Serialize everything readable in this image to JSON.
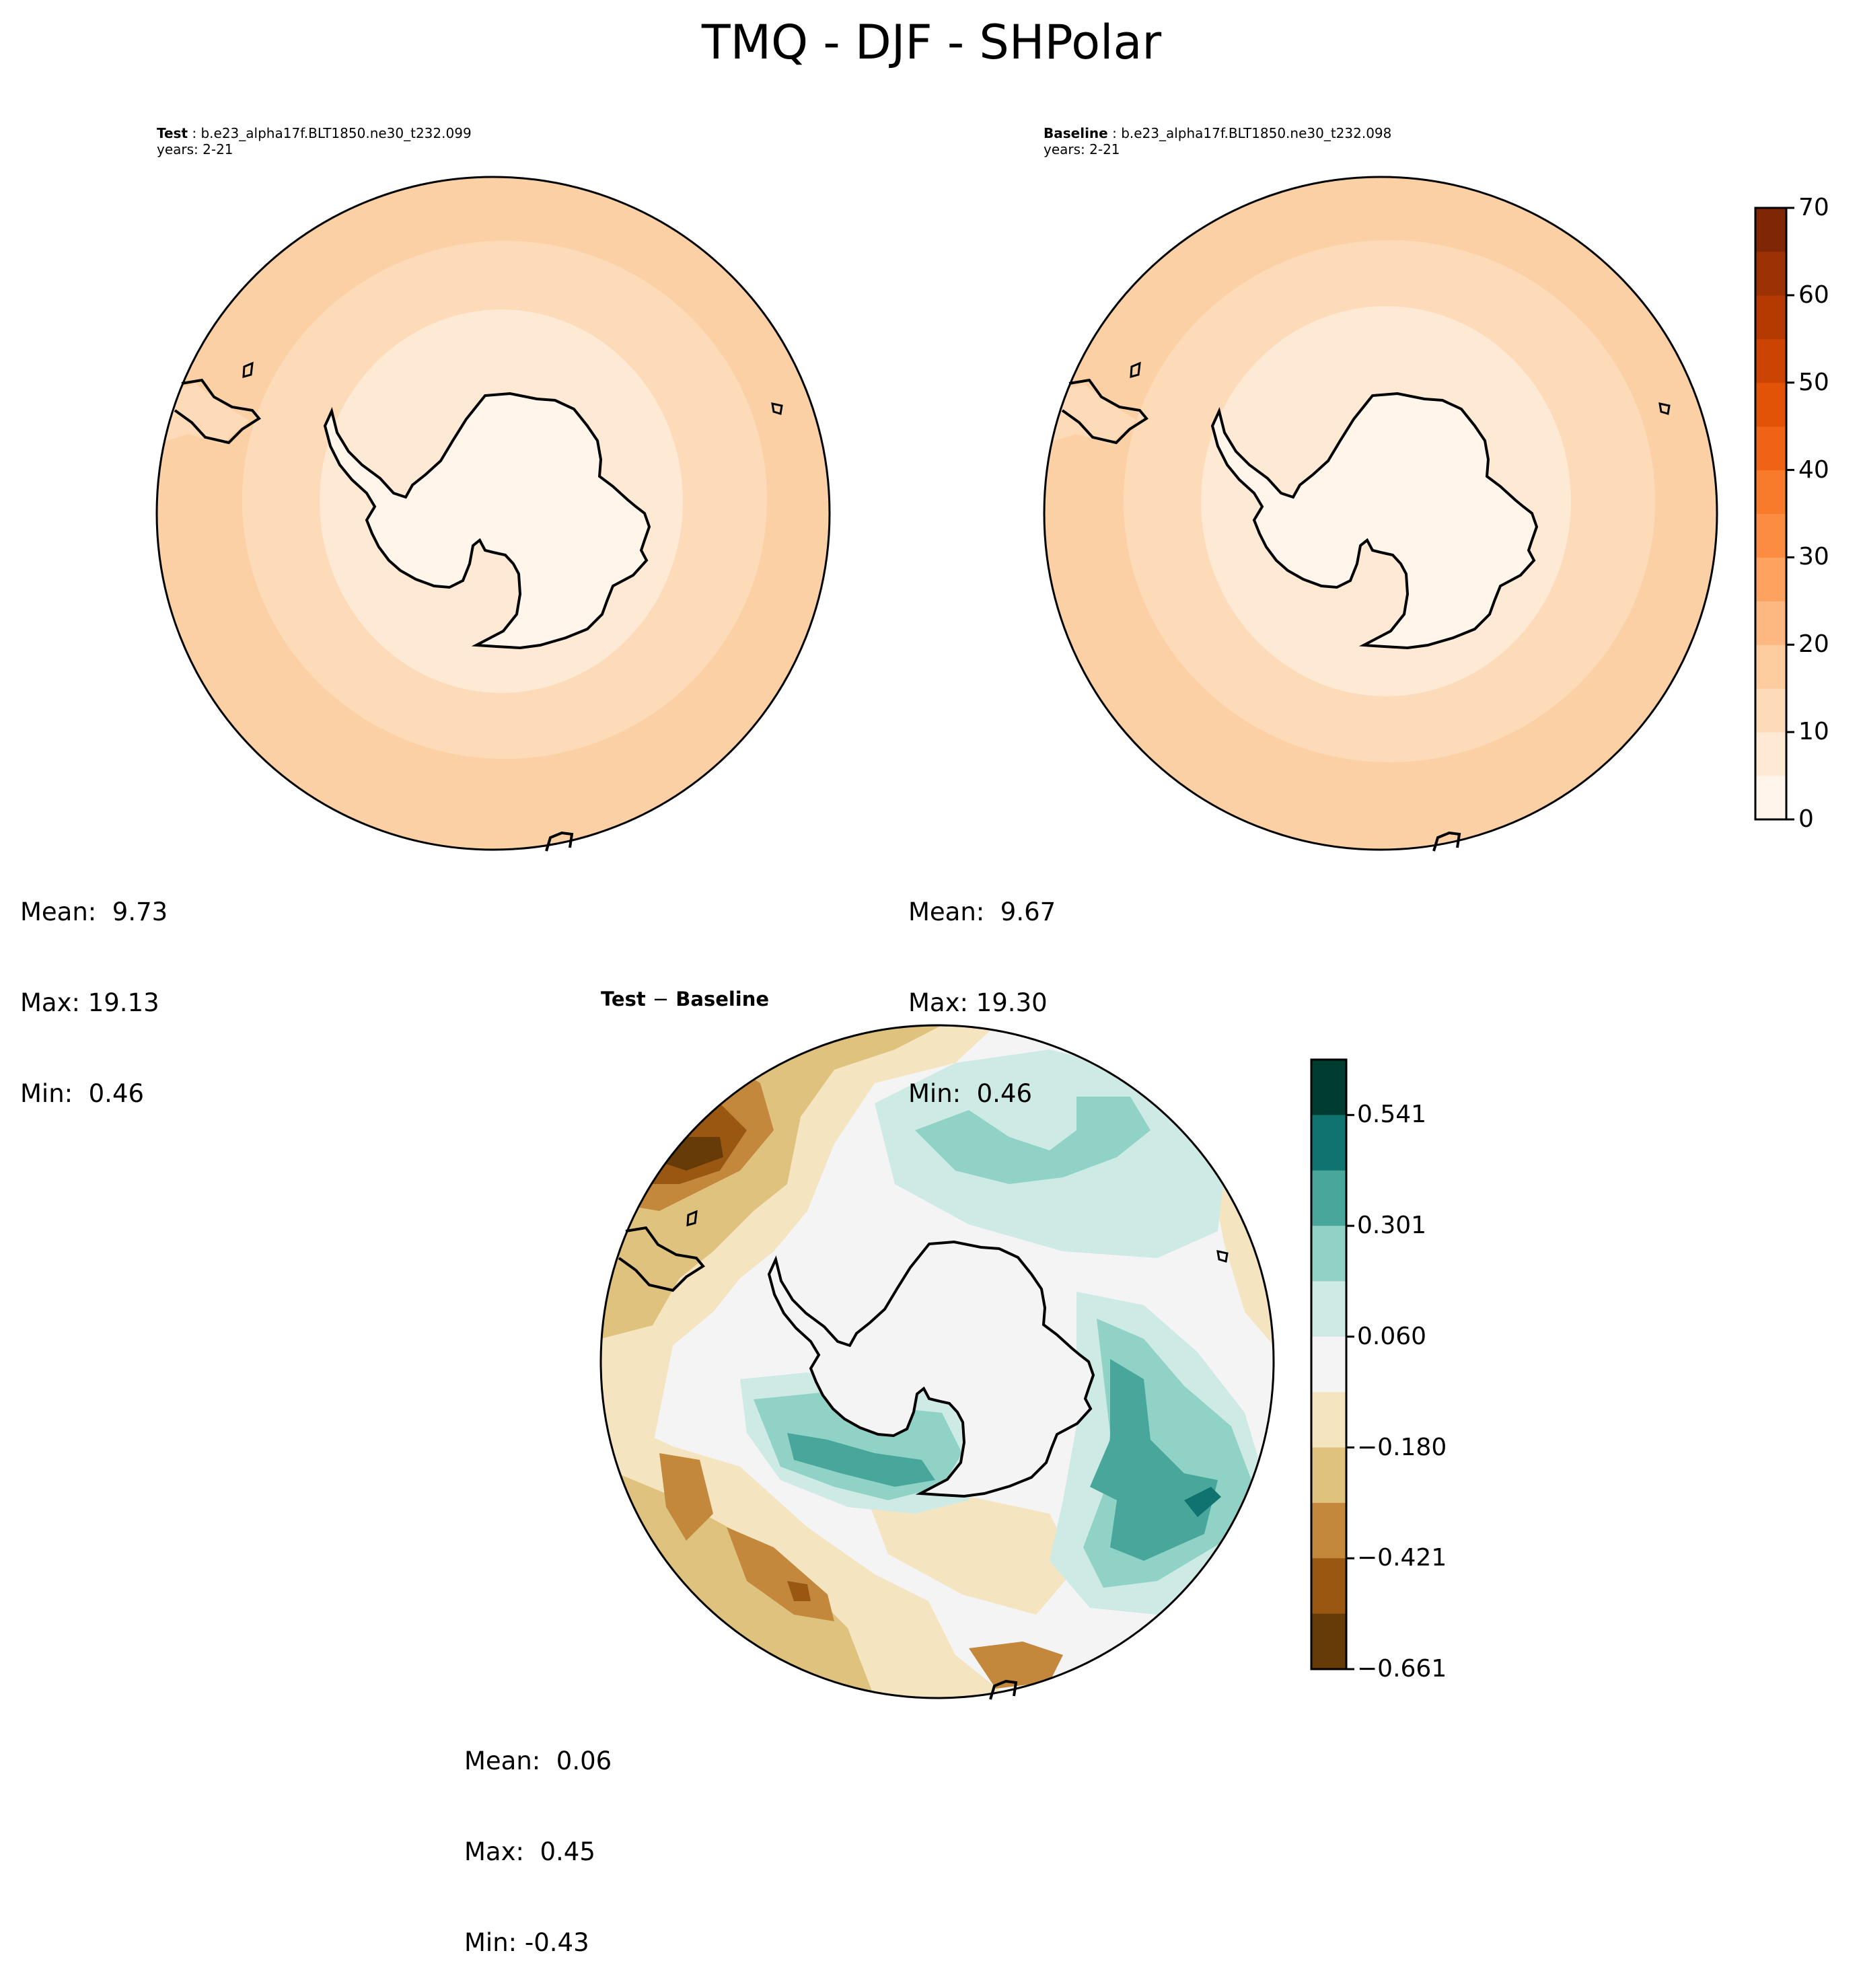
{
  "figure": {
    "title": "TMQ - DJF - SHPolar"
  },
  "panels": {
    "test": {
      "label": "Test",
      "case": "b.e23_alpha17f.BLT1850.ne30_t232.099",
      "years": "years: 2-21",
      "stats": {
        "mean": "Mean:  9.73",
        "max": "Max: 19.13",
        "min": "Min:  0.46"
      }
    },
    "baseline": {
      "label": "Baseline",
      "case": "b.e23_alpha17f.BLT1850.ne30_t232.098",
      "years": "years: 2-21",
      "stats": {
        "mean": "Mean:  9.67",
        "max": "Max: 19.30",
        "min": "Min:  0.46"
      }
    },
    "diff": {
      "title_a": "Test",
      "title_sep": "−",
      "title_b": "Baseline",
      "stats": {
        "mean": "Mean:  0.06",
        "max": "Max:  0.45",
        "min": "Min: -0.43"
      }
    }
  },
  "colorbars": {
    "main": {
      "ticks": [
        "0",
        "10",
        "20",
        "30",
        "40",
        "50",
        "60",
        "70"
      ],
      "tick_values": [
        0,
        10,
        20,
        30,
        40,
        50,
        60,
        70
      ],
      "range": [
        0,
        70
      ],
      "levels": 14,
      "colors": [
        "#fff5eb",
        "#fee9d4",
        "#fddbb9",
        "#fdcd9f",
        "#fdb882",
        "#fda25f",
        "#fd8c43",
        "#f87a2b",
        "#ef6316",
        "#e25307",
        "#cc4402",
        "#b43a02",
        "#9c3203",
        "#7f2704"
      ]
    },
    "diff": {
      "ticks": [
        "0.541",
        "0.301",
        "0.060",
        "−0.180",
        "−0.421",
        "−0.661"
      ],
      "colors": [
        "#003c30",
        "#0f7470",
        "#49a69b",
        "#91d2c6",
        "#cdeae5",
        "#f3f4f3",
        "#f4e5c0",
        "#dfc27d",
        "#c3883c",
        "#995712",
        "#663b08"
      ]
    }
  },
  "map_colors": {
    "ocean_far": "#fcd0a5",
    "ocean_mid": "#fddbb9",
    "ocean_near": "#fee9d4",
    "land": "#fff5eb",
    "coast": "#000000"
  },
  "diff_colors": {
    "neutral": "#f3f4f3",
    "weak_neg": "#f4e5c0",
    "mod_neg": "#dfc27d",
    "strong_neg": "#c3883c",
    "vstrong_neg": "#995712",
    "extreme_neg": "#663b08",
    "weak_pos": "#cdeae5",
    "mod_pos": "#91d2c6",
    "strong_pos": "#49a69b",
    "vstrong_pos": "#0f7470"
  }
}
